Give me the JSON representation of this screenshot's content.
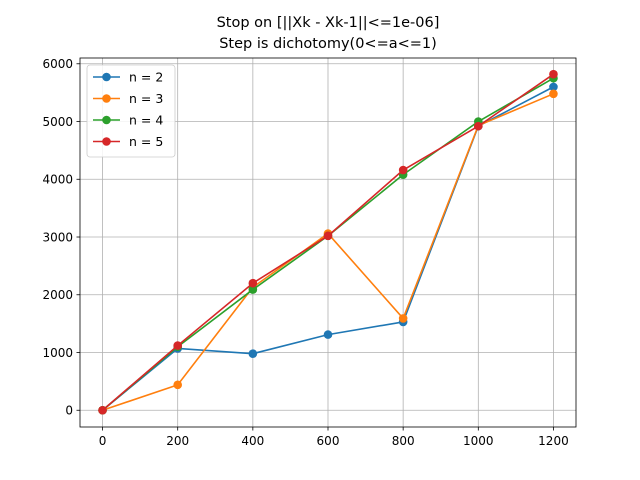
{
  "chart_data": {
    "type": "line",
    "title": "Stop on [||Xk - Xk-1||<=1e-06]",
    "subtitle": "Step is dichotomy(0<=a<=1)",
    "xlabel": "",
    "ylabel": "",
    "x": [
      0,
      200,
      400,
      600,
      800,
      1000,
      1200
    ],
    "x_ticks": [
      "0",
      "200",
      "400",
      "600",
      "800",
      "1000",
      "1200"
    ],
    "y_ticks": [
      "0",
      "1000",
      "2000",
      "3000",
      "4000",
      "5000",
      "6000"
    ],
    "xlim": [
      -60,
      1260
    ],
    "ylim": [
      -290,
      6100
    ],
    "grid": true,
    "legend_position": "upper-left",
    "series": [
      {
        "name": "n = 2",
        "color": "#1f77b4",
        "values": [
          0,
          1070,
          980,
          1310,
          1530,
          4920,
          5600
        ]
      },
      {
        "name": "n = 3",
        "color": "#ff7f0e",
        "values": [
          0,
          440,
          2130,
          3060,
          1590,
          4930,
          5480
        ]
      },
      {
        "name": "n = 4",
        "color": "#2ca02c",
        "values": [
          0,
          1100,
          2090,
          3020,
          4080,
          5000,
          5750
        ]
      },
      {
        "name": "n = 5",
        "color": "#d62728",
        "values": [
          0,
          1120,
          2200,
          3020,
          4160,
          4920,
          5820
        ]
      }
    ]
  }
}
